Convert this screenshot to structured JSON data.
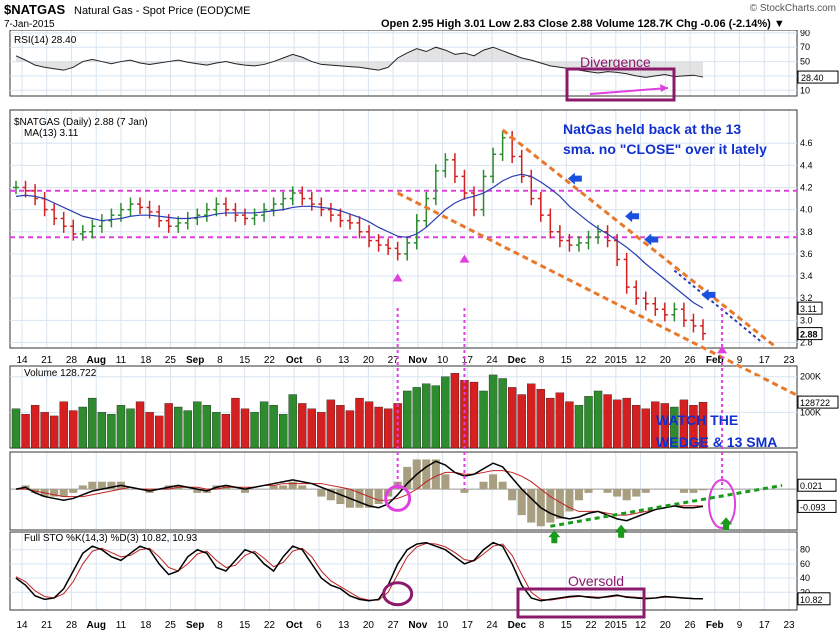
{
  "header": {
    "symbol": "$NATGAS",
    "description": "Natural Gas - Spot Price (EOD)",
    "exchange": "CME",
    "date": "7-Jan-2015",
    "ohlc_text": "Open 2.95  High 3.01  Low 2.83  Close 2.88  Volume 128.7K  Chg -0.06 (-2.14%) ▼",
    "watermark": "© StockCharts.com"
  },
  "colors": {
    "up": "#2e8b2e",
    "down": "#d42020",
    "ma": "#2a3cb0",
    "annotation": "#e040e0",
    "wedge": "#e8782a",
    "divergence_box": "#8b1a6b",
    "blue_text": "#1030d0",
    "arrow_blue": "#1a50e0",
    "arrow_green": "#1a9a1a",
    "macd_hist": "#a89e80"
  },
  "chart_data": [
    {
      "type": "line",
      "panel": "RSI",
      "label": "RSI(14) 28.40",
      "ylim": [
        10,
        90
      ],
      "y_ticks": [
        90,
        70,
        50,
        30,
        10
      ],
      "last_value_label": "28.40",
      "annotations": [
        "Divergence"
      ],
      "series": [
        {
          "values": [
            58,
            52,
            45,
            42,
            40,
            38,
            42,
            50,
            53,
            50,
            47,
            50,
            52,
            48,
            46,
            48,
            50,
            52,
            49,
            47,
            45,
            48,
            50,
            47,
            45,
            44,
            46,
            50,
            55,
            60,
            56,
            50,
            46,
            45,
            44,
            43,
            42,
            40,
            38,
            42,
            55,
            62,
            68,
            64,
            70,
            66,
            60,
            62,
            58,
            66,
            70,
            65,
            60,
            55,
            52,
            48,
            44,
            42,
            40,
            38,
            36,
            34,
            36,
            35,
            33,
            30,
            28,
            30,
            32,
            29,
            30,
            31,
            28.4
          ]
        }
      ]
    },
    {
      "type": "bar",
      "panel": "Price",
      "label": "$NATGAS (Daily) 2.88 (7 Jan)",
      "ma_label": "MA(13) 3.11",
      "ylim": [
        2.8,
        4.8
      ],
      "y_ticks": [
        4.6,
        4.4,
        4.2,
        4.0,
        3.8,
        3.6,
        3.4,
        3.2,
        3.0,
        2.8
      ],
      "price_flags": [
        "3.11",
        "2.88"
      ],
      "close": [
        4.2,
        4.17,
        4.1,
        4.0,
        3.92,
        3.85,
        3.78,
        3.8,
        3.85,
        3.9,
        3.95,
        4.0,
        4.05,
        4.02,
        3.98,
        3.9,
        3.85,
        3.88,
        3.92,
        3.95,
        4.0,
        4.05,
        4.0,
        3.95,
        3.92,
        3.95,
        4.0,
        4.05,
        4.1,
        4.15,
        4.1,
        4.05,
        4.0,
        3.95,
        3.9,
        3.88,
        3.8,
        3.72,
        3.68,
        3.65,
        3.6,
        3.7,
        3.9,
        4.1,
        4.35,
        4.45,
        4.3,
        4.15,
        4.0,
        4.3,
        4.5,
        4.65,
        4.48,
        4.3,
        4.1,
        3.95,
        3.8,
        3.72,
        3.68,
        3.7,
        3.75,
        3.8,
        3.72,
        3.55,
        3.3,
        3.2,
        3.15,
        3.1,
        3.05,
        3.1,
        3.0,
        2.95,
        2.88
      ],
      "ma13": [
        4.12,
        4.13,
        4.12,
        4.1,
        4.06,
        4.02,
        3.98,
        3.94,
        3.92,
        3.9,
        3.91,
        3.92,
        3.94,
        3.95,
        3.95,
        3.94,
        3.93,
        3.92,
        3.92,
        3.93,
        3.94,
        3.96,
        3.97,
        3.97,
        3.97,
        3.97,
        3.98,
        3.99,
        4.0,
        4.02,
        4.03,
        4.03,
        4.02,
        4.01,
        3.99,
        3.96,
        3.93,
        3.89,
        3.84,
        3.8,
        3.76,
        3.75,
        3.78,
        3.84,
        3.92,
        4.0,
        4.06,
        4.1,
        4.12,
        4.15,
        4.2,
        4.26,
        4.3,
        4.32,
        4.3,
        4.25,
        4.19,
        4.12,
        4.03,
        3.96,
        3.89,
        3.83,
        3.78,
        3.72,
        3.66,
        3.59,
        3.51,
        3.44,
        3.37,
        3.3,
        3.23,
        3.16,
        3.11
      ],
      "annotations": [
        "NatGas held back at the 13",
        "sma. no \"CLOSE\" over it lately"
      ]
    },
    {
      "type": "bar",
      "panel": "Volume",
      "label": "Volume 128,722",
      "y_ticks": [
        "200K",
        "100K"
      ],
      "last_value_label": "128722",
      "values": [
        110,
        95,
        120,
        100,
        90,
        130,
        105,
        115,
        140,
        100,
        95,
        120,
        110,
        130,
        100,
        90,
        125,
        115,
        105,
        130,
        120,
        100,
        95,
        140,
        110,
        100,
        130,
        120,
        95,
        150,
        125,
        110,
        100,
        135,
        120,
        105,
        140,
        130,
        115,
        110,
        125,
        160,
        170,
        180,
        175,
        200,
        210,
        190,
        185,
        160,
        205,
        195,
        170,
        150,
        180,
        165,
        140,
        155,
        130,
        120,
        145,
        160,
        150,
        135,
        140,
        120,
        110,
        130,
        125,
        115,
        135,
        120,
        128.7
      ],
      "annotations": [
        "WATCH THE",
        "WEDGE & 13 SMA"
      ]
    },
    {
      "type": "line",
      "panel": "MACD",
      "value_labels": [
        "0.021",
        "-0.093"
      ],
      "macd": [
        0,
        0.01,
        -0.02,
        -0.04,
        -0.05,
        -0.06,
        -0.05,
        -0.03,
        -0.01,
        0,
        0.01,
        0.02,
        0.01,
        0,
        -0.01,
        0,
        0.01,
        0.02,
        0.01,
        0,
        -0.01,
        0.01,
        0.02,
        0.01,
        0,
        0.01,
        0.02,
        0.03,
        0.04,
        0.05,
        0.04,
        0.03,
        0.01,
        -0.01,
        -0.03,
        -0.05,
        -0.07,
        -0.09,
        -0.1,
        -0.08,
        -0.03,
        0.03,
        0.08,
        0.12,
        0.15,
        0.13,
        0.09,
        0.07,
        0.08,
        0.11,
        0.14,
        0.12,
        0.06,
        0,
        -0.05,
        -0.1,
        -0.13,
        -0.15,
        -0.16,
        -0.15,
        -0.13,
        -0.12,
        -0.14,
        -0.16,
        -0.17,
        -0.15,
        -0.13,
        -0.11,
        -0.1,
        -0.09,
        -0.1,
        -0.1,
        -0.093
      ],
      "signal": [
        0,
        0,
        -0.01,
        -0.02,
        -0.03,
        -0.04,
        -0.04,
        -0.04,
        -0.03,
        -0.02,
        -0.01,
        0,
        0.01,
        0,
        0,
        0,
        0,
        0.01,
        0.01,
        0.01,
        0,
        0,
        0.01,
        0.01,
        0.01,
        0.01,
        0.02,
        0.02,
        0.03,
        0.03,
        0.03,
        0.03,
        0.03,
        0.02,
        0.01,
        0,
        -0.02,
        -0.04,
        -0.06,
        -0.06,
        -0.05,
        -0.03,
        0,
        0.04,
        0.07,
        0.09,
        0.09,
        0.08,
        0.08,
        0.09,
        0.1,
        0.1,
        0.09,
        0.07,
        0.04,
        0,
        -0.04,
        -0.07,
        -0.1,
        -0.12,
        -0.12,
        -0.12,
        -0.13,
        -0.14,
        -0.14,
        -0.13,
        -0.12,
        -0.11,
        -0.1,
        -0.09,
        -0.09,
        -0.09,
        -0.09
      ]
    },
    {
      "type": "line",
      "panel": "Full STO",
      "label": "Full STO %K(14,3) %D(3) 10.82, 10.93",
      "ylim": [
        0,
        100
      ],
      "y_ticks": [
        80,
        60,
        40,
        20
      ],
      "last_value_label": "10.82",
      "annotations": [
        "Oversold"
      ],
      "k": [
        40,
        30,
        15,
        10,
        12,
        25,
        50,
        75,
        85,
        80,
        70,
        65,
        75,
        85,
        80,
        60,
        45,
        50,
        70,
        80,
        75,
        55,
        50,
        65,
        80,
        75,
        60,
        50,
        70,
        85,
        80,
        60,
        40,
        30,
        25,
        15,
        10,
        8,
        10,
        30,
        60,
        80,
        88,
        90,
        85,
        80,
        70,
        60,
        65,
        80,
        90,
        85,
        60,
        30,
        12,
        8,
        10,
        12,
        14,
        15,
        13,
        12,
        14,
        16,
        13,
        12,
        11,
        12,
        14,
        13,
        12,
        11,
        10.82
      ],
      "d": [
        42,
        35,
        22,
        14,
        12,
        18,
        35,
        60,
        78,
        82,
        76,
        70,
        72,
        80,
        82,
        70,
        55,
        50,
        60,
        74,
        78,
        65,
        55,
        58,
        72,
        78,
        68,
        56,
        62,
        78,
        82,
        70,
        50,
        36,
        28,
        20,
        12,
        9,
        9,
        20,
        45,
        70,
        84,
        89,
        88,
        84,
        76,
        66,
        64,
        74,
        85,
        88,
        72,
        45,
        20,
        10,
        9,
        11,
        13,
        14,
        14,
        13,
        13,
        15,
        14,
        13,
        12,
        12,
        13,
        13,
        12,
        11,
        10.93
      ]
    }
  ],
  "x_axis": {
    "labels": [
      "14",
      "21",
      "28",
      "Aug",
      "11",
      "18",
      "25",
      "Sep",
      "8",
      "15",
      "22",
      "Oct",
      "6",
      "13",
      "20",
      "27",
      "Nov",
      "10",
      "17",
      "24",
      "Dec",
      "8",
      "15",
      "22",
      "2015",
      "12",
      "20",
      "26",
      "Feb",
      "9",
      "17",
      "23"
    ]
  }
}
